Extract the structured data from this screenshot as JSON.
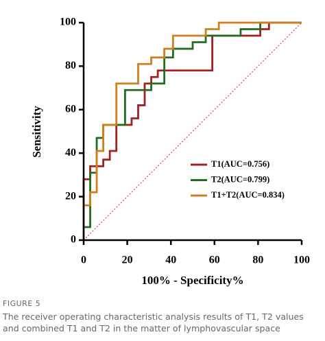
{
  "chart_data": {
    "type": "line",
    "xlabel": "100% - Specificity%",
    "ylabel": "Sensitivity",
    "xlim": [
      0,
      100
    ],
    "ylim": [
      0,
      100
    ],
    "xticks": [
      0,
      20,
      40,
      60,
      80,
      100
    ],
    "yticks": [
      0,
      20,
      40,
      60,
      80,
      100
    ],
    "legend": "lower right",
    "series": [
      {
        "name": "T1(AUC=0.756)",
        "color": "#a3201f",
        "x": [
          0,
          0,
          3,
          3,
          9,
          9,
          12,
          12,
          15,
          15,
          22,
          22,
          25,
          25,
          28,
          28,
          31,
          31,
          34,
          34,
          59,
          59,
          81,
          81,
          85,
          85,
          100
        ],
        "values": [
          0,
          28,
          28,
          34,
          34,
          37,
          37,
          41,
          41,
          53,
          53,
          56,
          56,
          62,
          62,
          72,
          72,
          75,
          75,
          78,
          78,
          94,
          94,
          97,
          97,
          100,
          100
        ]
      },
      {
        "name": "T2(AUC=0.799)",
        "color": "#1f6e1f",
        "x": [
          0,
          0,
          3,
          3,
          6,
          6,
          9,
          9,
          19,
          19,
          31,
          31,
          37,
          37,
          41,
          41,
          50,
          50,
          56,
          56,
          72,
          72,
          81,
          81,
          100
        ],
        "values": [
          0,
          6,
          6,
          31,
          31,
          47,
          47,
          53,
          53,
          69,
          69,
          72,
          72,
          84,
          84,
          88,
          88,
          91,
          91,
          94,
          94,
          97,
          97,
          100,
          100
        ]
      },
      {
        "name": "T1+T2(AUC=0.834)",
        "color": "#d27d1e",
        "x": [
          0,
          0,
          3,
          3,
          6,
          6,
          9,
          9,
          15,
          15,
          25,
          25,
          31,
          31,
          37,
          37,
          41,
          41,
          56,
          56,
          62,
          62,
          100
        ],
        "values": [
          0,
          16,
          16,
          22,
          22,
          41,
          41,
          53,
          53,
          72,
          72,
          81,
          81,
          84,
          84,
          88,
          88,
          94,
          94,
          97,
          97,
          100,
          100
        ]
      }
    ]
  },
  "caption": {
    "label": "FIGURE 5",
    "text": "The receiver operating characteristic analysis results of T1, T2 values and combined T1 and T2 in the matter of lymphovascular space"
  }
}
